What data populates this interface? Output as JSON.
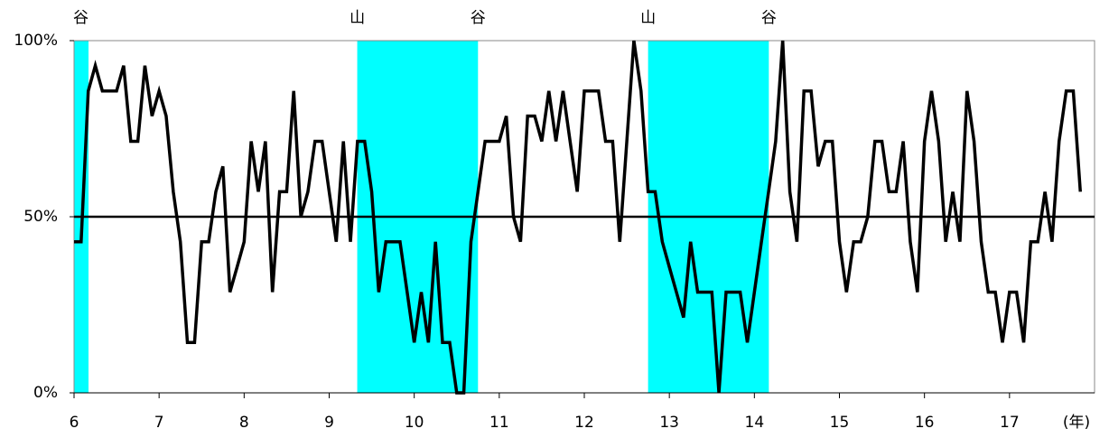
{
  "chart_data": {
    "type": "line",
    "color": "#000000",
    "shade_color": "#00ffff",
    "x_axis_label": "(年)",
    "xlim": [
      6,
      18
    ],
    "xticks": [
      6,
      7,
      8,
      9,
      10,
      11,
      12,
      13,
      14,
      15,
      16,
      17
    ],
    "ylim": [
      0,
      100
    ],
    "yticks": [
      {
        "value": 0,
        "label": "0%"
      },
      {
        "value": 50,
        "label": "50%"
      },
      {
        "value": 100,
        "label": "100%"
      }
    ],
    "reference_line": 50,
    "shading": [
      {
        "start": 6,
        "end": 6.17
      },
      {
        "start": 9.33,
        "end": 10.75
      },
      {
        "start": 12.75,
        "end": 14.17
      }
    ],
    "annotations": [
      {
        "x": 6.08,
        "label": "谷"
      },
      {
        "x": 9.33,
        "label": "山"
      },
      {
        "x": 10.75,
        "label": "谷"
      },
      {
        "x": 12.75,
        "label": "山"
      },
      {
        "x": 14.17,
        "label": "谷"
      }
    ],
    "x": [
      6,
      6.083,
      6.167,
      6.25,
      6.333,
      6.417,
      6.5,
      6.583,
      6.667,
      6.75,
      6.833,
      6.917,
      7,
      7.083,
      7.167,
      7.25,
      7.333,
      7.417,
      7.5,
      7.583,
      7.667,
      7.75,
      7.833,
      7.917,
      8,
      8.083,
      8.167,
      8.25,
      8.333,
      8.417,
      8.5,
      8.583,
      8.667,
      8.75,
      8.833,
      8.917,
      9,
      9.083,
      9.167,
      9.25,
      9.333,
      9.417,
      9.5,
      9.583,
      9.667,
      9.75,
      9.833,
      9.917,
      10,
      10.083,
      10.167,
      10.25,
      10.333,
      10.417,
      10.5,
      10.583,
      10.667,
      10.75,
      10.833,
      10.917,
      11,
      11.083,
      11.167,
      11.25,
      11.333,
      11.417,
      11.5,
      11.583,
      11.667,
      11.75,
      11.833,
      11.917,
      12,
      12.083,
      12.167,
      12.25,
      12.333,
      12.417,
      12.5,
      12.583,
      12.667,
      12.75,
      12.833,
      12.917,
      13,
      13.083,
      13.167,
      13.25,
      13.333,
      13.417,
      13.5,
      13.583,
      13.667,
      13.75,
      13.833,
      13.917,
      14,
      14.083,
      14.167,
      14.25,
      14.333,
      14.417,
      14.5,
      14.583,
      14.667,
      14.75,
      14.833,
      14.917,
      15,
      15.083,
      15.167,
      15.25,
      15.333,
      15.417,
      15.5,
      15.583,
      15.667,
      15.75,
      15.833,
      15.917,
      16,
      16.083,
      16.167,
      16.25,
      16.333,
      16.417,
      16.5,
      16.583,
      16.667,
      16.75,
      16.833,
      16.917,
      17,
      17.083,
      17.167,
      17.25,
      17.333,
      17.417,
      17.5,
      17.583,
      17.667,
      17.75,
      17.833
    ],
    "values": [
      42.9,
      42.9,
      85.7,
      92.9,
      85.7,
      85.7,
      85.7,
      92.9,
      71.4,
      71.4,
      92.9,
      78.6,
      85.7,
      78.6,
      57.1,
      42.9,
      14.3,
      14.3,
      42.9,
      42.9,
      57.1,
      64.3,
      28.6,
      35.7,
      42.9,
      71.4,
      57.1,
      71.4,
      28.6,
      57.1,
      57.1,
      85.7,
      50,
      57.1,
      71.4,
      71.4,
      57.1,
      42.9,
      71.4,
      42.9,
      71.4,
      71.4,
      57.1,
      28.6,
      42.9,
      42.9,
      42.9,
      28.6,
      14.3,
      28.6,
      14.3,
      42.9,
      14.3,
      14.3,
      0,
      0,
      42.9,
      57.1,
      71.4,
      71.4,
      71.4,
      78.6,
      50,
      42.9,
      78.6,
      78.6,
      71.4,
      85.7,
      71.4,
      85.7,
      71.4,
      57.1,
      85.7,
      85.7,
      85.7,
      71.4,
      71.4,
      42.9,
      71.4,
      100,
      85.7,
      57.1,
      57.1,
      42.9,
      35.7,
      28.6,
      21.4,
      42.9,
      28.6,
      28.6,
      28.6,
      0,
      28.6,
      28.6,
      28.6,
      14.3,
      28.6,
      42.9,
      57.1,
      71.4,
      100,
      57.1,
      42.9,
      85.7,
      85.7,
      64.3,
      71.4,
      71.4,
      42.9,
      28.6,
      42.9,
      42.9,
      50,
      71.4,
      71.4,
      57.1,
      57.1,
      71.4,
      42.9,
      28.6,
      71.4,
      85.7,
      71.4,
      42.9,
      57.1,
      42.9,
      85.7,
      71.4,
      42.9,
      28.6,
      28.6,
      14.3,
      28.6,
      28.6,
      14.3,
      42.9,
      42.9,
      57.1,
      42.9,
      71.4,
      85.7,
      85.7,
      57.1
    ]
  }
}
